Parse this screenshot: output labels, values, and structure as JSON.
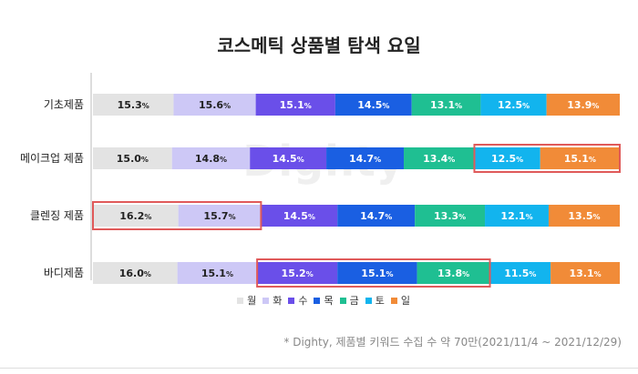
{
  "chart_data": {
    "type": "bar",
    "orientation": "horizontal",
    "stacked": true,
    "title": "코스메틱 상품별 탐색 요일",
    "categories": [
      "기초제품",
      "메이크업 제품",
      "클렌징 제품",
      "바디제품"
    ],
    "series": [
      {
        "name": "월",
        "color": "#e3e3e3",
        "label_color": "#222222",
        "values": [
          15.3,
          15.0,
          16.2,
          16.0
        ]
      },
      {
        "name": "화",
        "color": "#cdc8f6",
        "label_color": "#222222",
        "values": [
          15.6,
          14.8,
          15.7,
          15.1
        ]
      },
      {
        "name": "수",
        "color": "#6a4fe9",
        "label_color": "#ffffff",
        "values": [
          15.1,
          14.5,
          14.5,
          15.2
        ]
      },
      {
        "name": "목",
        "color": "#1a5fe2",
        "label_color": "#ffffff",
        "values": [
          14.5,
          14.7,
          14.7,
          15.1
        ]
      },
      {
        "name": "금",
        "color": "#1fbf92",
        "label_color": "#ffffff",
        "values": [
          13.1,
          13.4,
          13.3,
          13.8
        ]
      },
      {
        "name": "토",
        "color": "#12b4ee",
        "label_color": "#ffffff",
        "values": [
          12.5,
          12.5,
          12.1,
          11.5
        ]
      },
      {
        "name": "일",
        "color": "#f18b38",
        "label_color": "#ffffff",
        "values": [
          13.9,
          15.1,
          13.5,
          13.1
        ]
      }
    ],
    "highlights": [
      {
        "category": 1,
        "series": [
          5,
          6
        ]
      },
      {
        "category": 2,
        "series": [
          0,
          1
        ]
      },
      {
        "category": 3,
        "series": [
          2,
          3,
          4
        ]
      }
    ],
    "highlight_color": "#e05a5a",
    "value_suffix": "%",
    "legend_position": "bottom"
  },
  "watermark": "Dighty",
  "source_note": "* Dighty, 제품별 키워드 수집 수 약 70만(2021/11/4 ~ 2021/12/29)"
}
